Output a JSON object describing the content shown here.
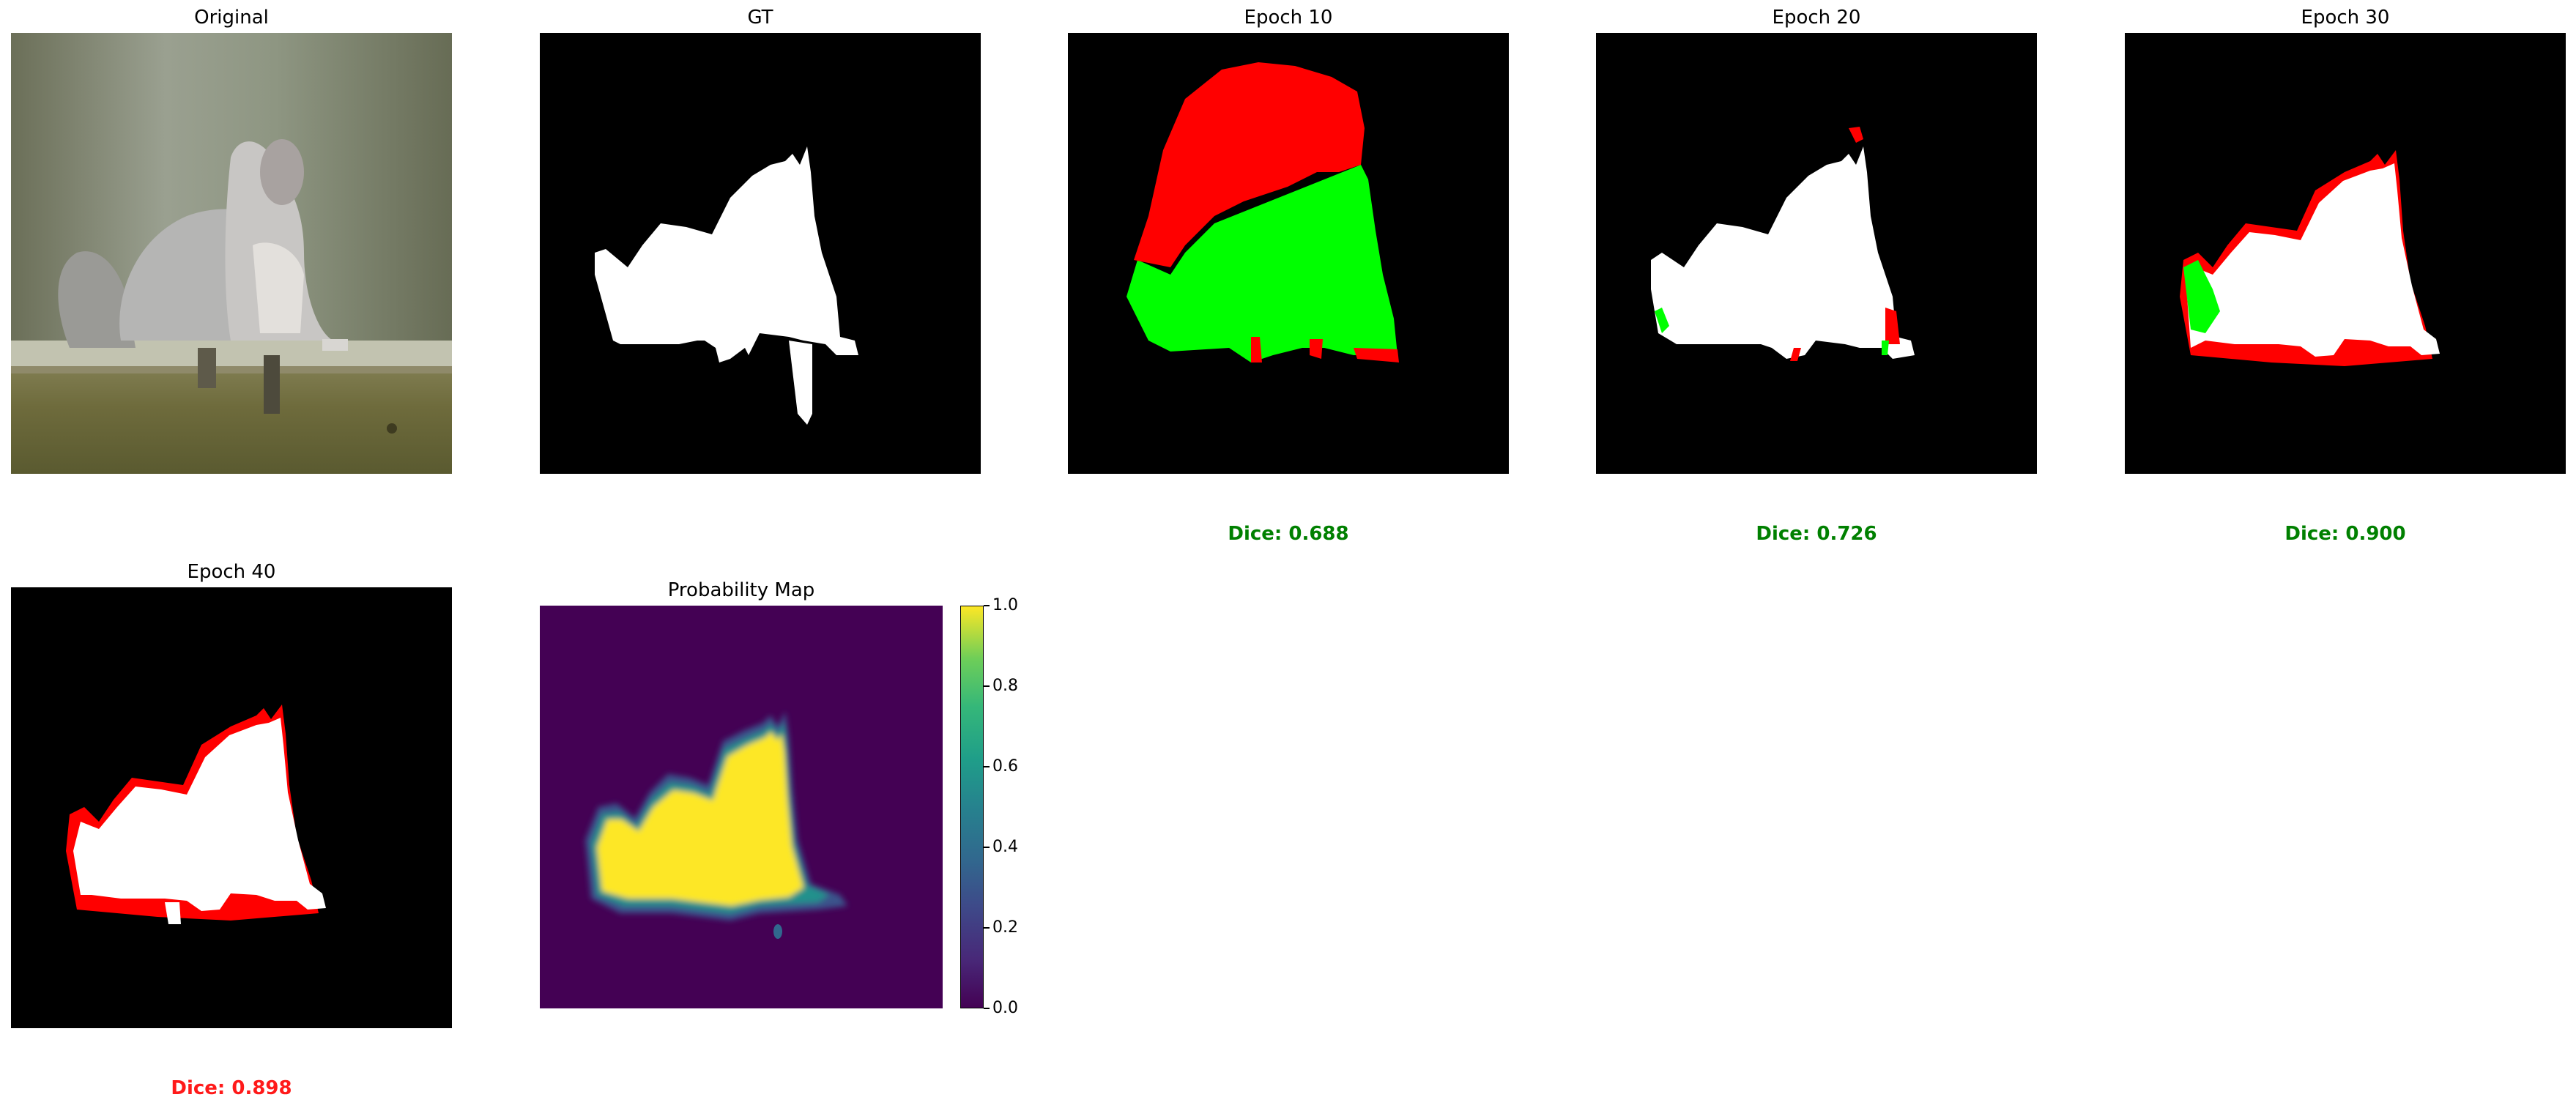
{
  "panels": [
    {
      "title": "Original"
    },
    {
      "title": "GT"
    },
    {
      "title": "Epoch 10",
      "dice": "Dice: 0.688",
      "dice_color": "#008000"
    },
    {
      "title": "Epoch 20",
      "dice": "Dice: 0.726",
      "dice_color": "#008000"
    },
    {
      "title": "Epoch 30",
      "dice": "Dice: 0.900",
      "dice_color": "#008000"
    },
    {
      "title": "Epoch 40",
      "dice": "Dice: 0.898",
      "dice_color": "#ff1a1a"
    },
    {
      "title": "Probability Map"
    }
  ],
  "colorbar": {
    "ticks": [
      "0.0",
      "0.2",
      "0.4",
      "0.6",
      "0.8",
      "1.0"
    ],
    "colormap": "viridis"
  },
  "colors": {
    "true_positive": "#ffffff",
    "false_positive": "#ff0000",
    "false_negative": "#00ff00",
    "background": "#000000"
  }
}
